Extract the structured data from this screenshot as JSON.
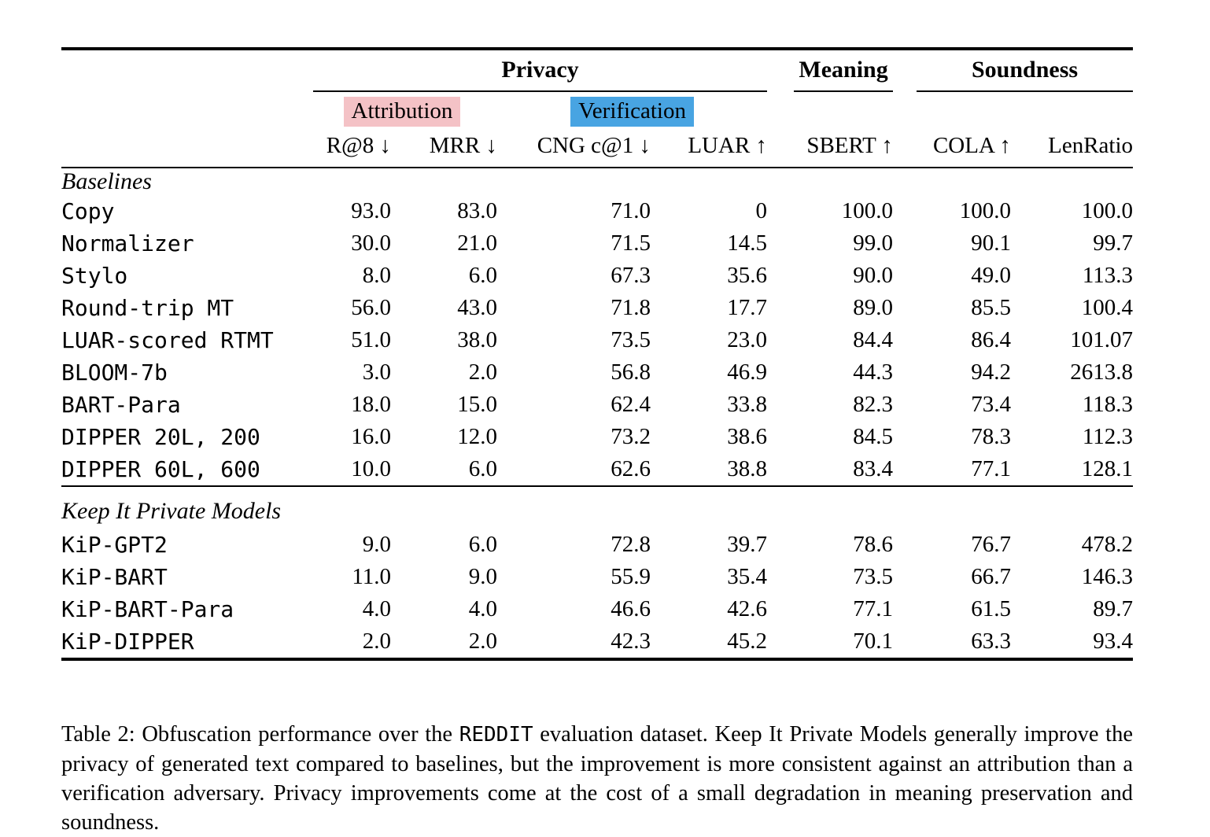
{
  "colors": {
    "attribution_highlight": "#f4c2c6",
    "verification_highlight": "#48a4e2",
    "rule_color": "#000000"
  },
  "table": {
    "group_headers": [
      {
        "label": "Privacy"
      },
      {
        "label": "Meaning"
      },
      {
        "label": "Soundness"
      }
    ],
    "subgroup_headers": [
      {
        "label": "Attribution"
      },
      {
        "label": "Verification"
      }
    ],
    "columns": [
      "R@8 ↓",
      "MRR ↓",
      "CNG c@1 ↓",
      "LUAR ↑",
      "SBERT ↑",
      "COLA ↑",
      "LenRatio"
    ],
    "sections": [
      {
        "label": "Baselines",
        "rows": [
          {
            "model": "Copy",
            "values": [
              "93.0",
              "83.0",
              "71.0",
              "0",
              "100.0",
              "100.0",
              "100.0"
            ],
            "bold": [
              false,
              false,
              false,
              false,
              true,
              true,
              false
            ]
          },
          {
            "model": "Normalizer",
            "values": [
              "30.0",
              "21.0",
              "71.5",
              "14.5",
              "99.0",
              "90.1",
              "99.7"
            ],
            "bold": [
              false,
              false,
              false,
              false,
              false,
              false,
              false
            ]
          },
          {
            "model": "Stylo",
            "values": [
              "8.0",
              "6.0",
              "67.3",
              "35.6",
              "90.0",
              "49.0",
              "113.3"
            ],
            "bold": [
              false,
              false,
              false,
              false,
              false,
              false,
              false
            ]
          },
          {
            "model": "Round-trip MT",
            "values": [
              "56.0",
              "43.0",
              "71.8",
              "17.7",
              "89.0",
              "85.5",
              "100.4"
            ],
            "bold": [
              false,
              false,
              false,
              false,
              false,
              false,
              false
            ]
          },
          {
            "model": "LUAR-scored RTMT",
            "values": [
              "51.0",
              "38.0",
              "73.5",
              "23.0",
              "84.4",
              "86.4",
              "101.07"
            ],
            "bold": [
              false,
              false,
              false,
              false,
              false,
              false,
              false
            ]
          },
          {
            "model": "BLOOM-7b",
            "values": [
              "3.0",
              "2.0",
              "56.8",
              "46.9",
              "44.3",
              "94.2",
              "2613.8"
            ],
            "bold": [
              true,
              true,
              true,
              true,
              false,
              false,
              false
            ]
          },
          {
            "model": "BART-Para",
            "values": [
              "18.0",
              "15.0",
              "62.4",
              "33.8",
              "82.3",
              "73.4",
              "118.3"
            ],
            "bold": [
              false,
              false,
              false,
              false,
              false,
              false,
              false
            ]
          },
          {
            "model": "DIPPER 20L, 200",
            "values": [
              "16.0",
              "12.0",
              "73.2",
              "38.6",
              "84.5",
              "78.3",
              "112.3"
            ],
            "bold": [
              false,
              false,
              false,
              false,
              false,
              false,
              false
            ]
          },
          {
            "model": "DIPPER 60L, 600",
            "values": [
              "10.0",
              "6.0",
              "62.6",
              "38.8",
              "83.4",
              "77.1",
              "128.1"
            ],
            "bold": [
              false,
              false,
              false,
              false,
              false,
              false,
              false
            ]
          }
        ]
      },
      {
        "label": "Keep It Private Models",
        "rows": [
          {
            "model": "KiP-GPT2",
            "values": [
              "9.0",
              "6.0",
              "72.8",
              "39.7",
              "78.6",
              "76.7",
              "478.2"
            ],
            "bold": [
              false,
              false,
              false,
              false,
              true,
              true,
              false
            ]
          },
          {
            "model": "KiP-BART",
            "values": [
              "11.0",
              "9.0",
              "55.9",
              "35.4",
              "73.5",
              "66.7",
              "146.3"
            ],
            "bold": [
              false,
              false,
              false,
              false,
              false,
              false,
              false
            ]
          },
          {
            "model": "KiP-BART-Para",
            "values": [
              "4.0",
              "4.0",
              "46.6",
              "42.6",
              "77.1",
              "61.5",
              "89.7"
            ],
            "bold": [
              false,
              false,
              false,
              false,
              false,
              false,
              false
            ]
          },
          {
            "model": "KiP-DIPPER",
            "values": [
              "2.0",
              "2.0",
              "42.3",
              "45.2",
              "70.1",
              "63.3",
              "93.4"
            ],
            "bold": [
              true,
              true,
              true,
              true,
              false,
              false,
              false
            ]
          }
        ]
      }
    ]
  },
  "caption": {
    "prefix": "Table 2: Obfuscation performance over the ",
    "dataset": "REDDIT",
    "suffix": " evaluation dataset. Keep It Private Models generally improve the privacy of generated text compared to baselines, but the improvement is more consistent against an attribution than a verification adversary. Privacy improvements come at the cost of a small degradation in meaning preservation and soundness."
  }
}
